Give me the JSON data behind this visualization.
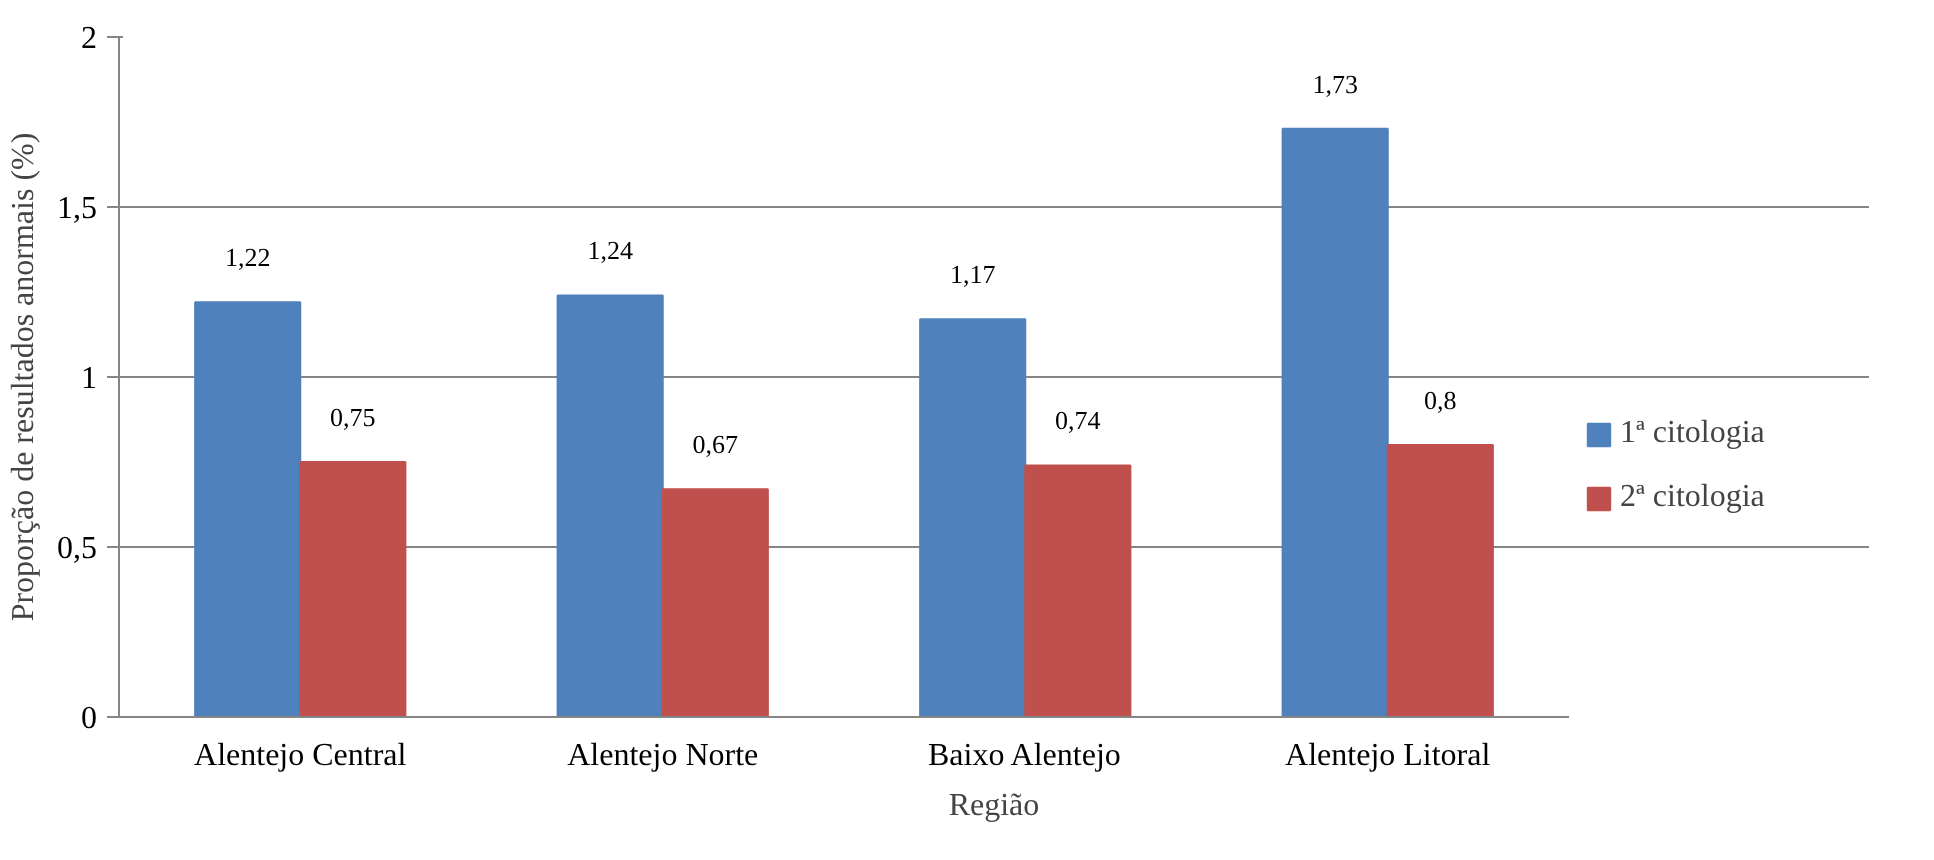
{
  "chart_data": {
    "type": "bar",
    "xlabel": "Região",
    "ylabel": "Proporção de resultados anormais (%)",
    "categories": [
      "Alentejo Central",
      "Alentejo Norte",
      "Baixo Alentejo",
      "Alentejo Litoral"
    ],
    "series": [
      {
        "name": "1ª citologia",
        "color": "#4f81bd",
        "values": [
          1.22,
          1.24,
          1.17,
          1.73
        ],
        "value_labels": [
          "1,22",
          "1,24",
          "1,17",
          "1,73"
        ]
      },
      {
        "name": "2ª citologia",
        "color": "#c0504d",
        "values": [
          0.75,
          0.67,
          0.74,
          0.8
        ],
        "value_labels": [
          "0,75",
          "0,67",
          "0,74",
          "0,8"
        ]
      }
    ],
    "ylim": [
      0,
      2
    ],
    "yticks": [
      0,
      {
        "value": 0.5,
        "label": "0,5"
      },
      1,
      {
        "value": 1.5,
        "label": "1,5"
      },
      2
    ],
    "grid": "y",
    "legend": "right"
  }
}
